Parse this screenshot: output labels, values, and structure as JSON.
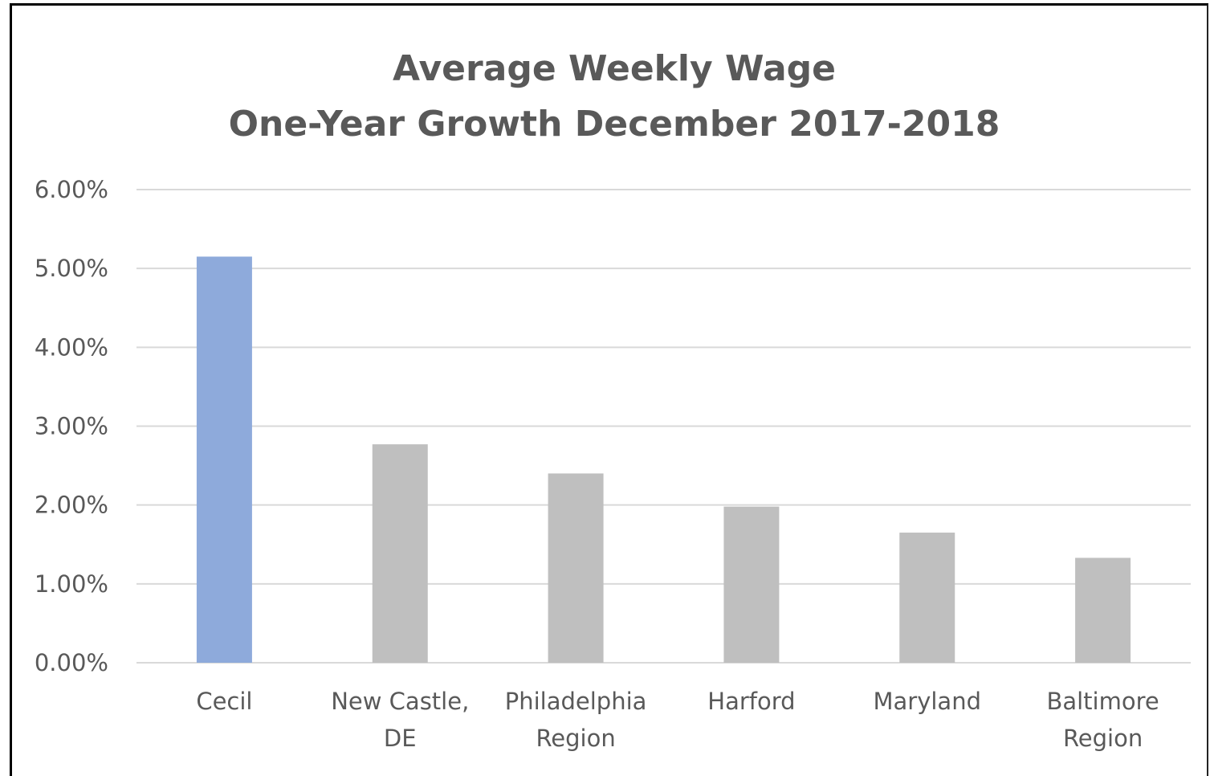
{
  "chart_data": {
    "type": "bar",
    "title": [
      "Average Weekly Wage",
      "One-Year Growth December 2017-2018"
    ],
    "categories": [
      [
        "Cecil"
      ],
      [
        "New Castle,",
        "DE"
      ],
      [
        "Philadelphia",
        "Region"
      ],
      [
        "Harford"
      ],
      [
        "Maryland"
      ],
      [
        "Baltimore",
        "Region"
      ]
    ],
    "values": [
      5.15,
      2.77,
      2.4,
      1.98,
      1.65,
      1.33
    ],
    "value_unit": "percent",
    "ylim": [
      0,
      6
    ],
    "y_tick_values": [
      0,
      1,
      2,
      3,
      4,
      5,
      6
    ],
    "y_tick_labels": [
      "0.00%",
      "1.00%",
      "2.00%",
      "3.00%",
      "4.00%",
      "5.00%",
      "6.00%"
    ],
    "xlabel": "",
    "ylabel": "",
    "grid": true,
    "legend": "none",
    "colors": {
      "highlight": "#8eaadb",
      "default": "#bfbfbf",
      "grid": "#d9d9d9",
      "text": "#595959"
    },
    "highlight_index": 0
  }
}
